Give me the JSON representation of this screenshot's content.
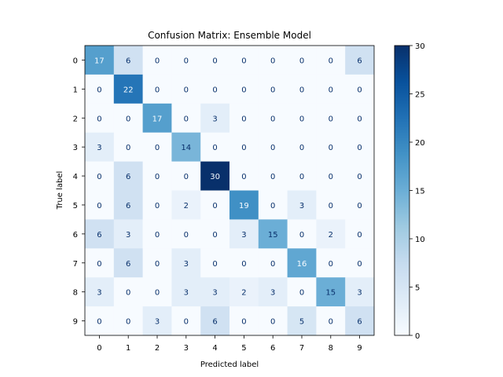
{
  "chart_data": {
    "type": "heatmap",
    "title": "Confusion Matrix: Ensemble Model",
    "xlabel": "Predicted label",
    "ylabel": "True label",
    "x_categories": [
      "0",
      "1",
      "2",
      "3",
      "4",
      "5",
      "6",
      "7",
      "8",
      "9"
    ],
    "y_categories": [
      "0",
      "1",
      "2",
      "3",
      "4",
      "5",
      "6",
      "7",
      "8",
      "9"
    ],
    "values": [
      [
        17,
        6,
        0,
        0,
        0,
        0,
        0,
        0,
        0,
        6
      ],
      [
        0,
        22,
        0,
        0,
        0,
        0,
        0,
        0,
        0,
        0
      ],
      [
        0,
        0,
        17,
        0,
        3,
        0,
        0,
        0,
        0,
        0
      ],
      [
        3,
        0,
        0,
        14,
        0,
        0,
        0,
        0,
        0,
        0
      ],
      [
        0,
        6,
        0,
        0,
        30,
        0,
        0,
        0,
        0,
        0
      ],
      [
        0,
        6,
        0,
        2,
        0,
        19,
        0,
        3,
        0,
        0
      ],
      [
        6,
        3,
        0,
        0,
        0,
        3,
        15,
        0,
        2,
        0
      ],
      [
        0,
        6,
        0,
        3,
        0,
        0,
        0,
        16,
        0,
        0
      ],
      [
        3,
        0,
        0,
        3,
        3,
        2,
        3,
        0,
        15,
        3
      ],
      [
        0,
        0,
        3,
        0,
        6,
        0,
        0,
        5,
        0,
        6
      ]
    ],
    "colormap": "Blues",
    "colorbar": {
      "min": 0,
      "max": 30,
      "ticks": [
        "0",
        "5",
        "10",
        "15",
        "20",
        "25",
        "30"
      ]
    },
    "grid": false
  }
}
